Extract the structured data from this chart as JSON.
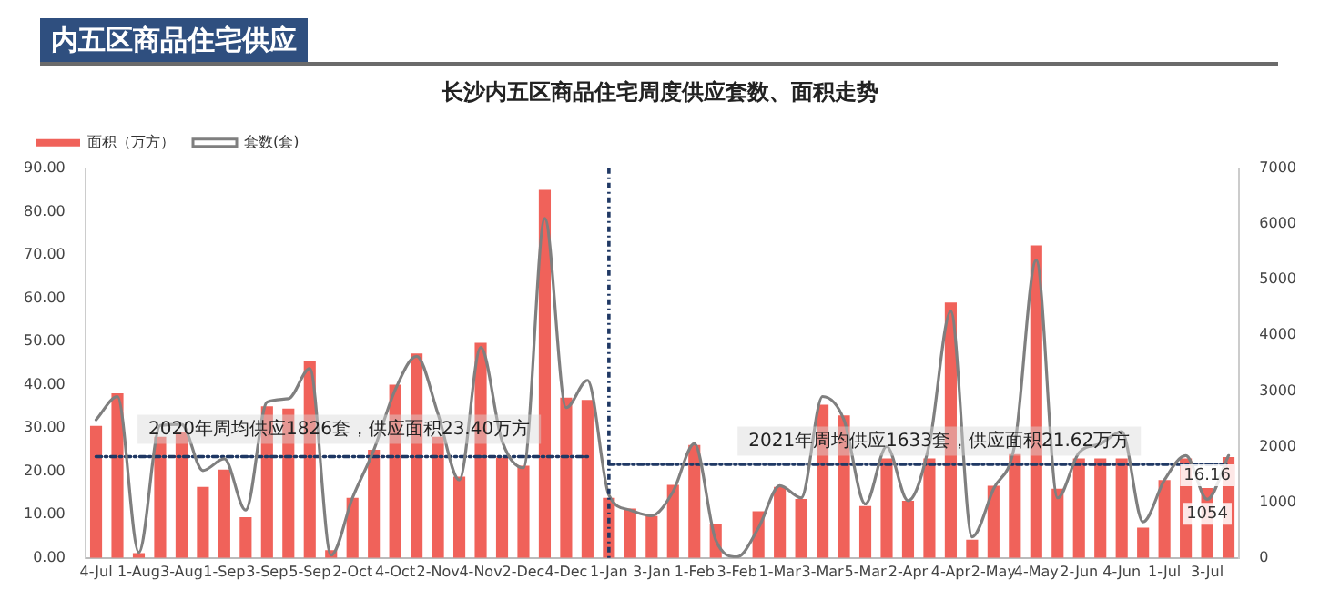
{
  "chart_data": {
    "type": "bar",
    "title": "内五区商品住宅供应",
    "subtitle": "长沙内五区商品住宅周度供应套数、面积走势",
    "categories": [
      "4-Jul",
      null,
      "1-Aug",
      null,
      "3-Aug",
      null,
      "1-Sep",
      null,
      "3-Sep",
      null,
      "5-Sep",
      null,
      "2-Oct",
      null,
      "4-Oct",
      null,
      "2-Nov",
      null,
      "4-Nov",
      null,
      "2-Dec",
      null,
      "4-Dec",
      null,
      "1-Jan",
      null,
      "3-Jan",
      null,
      "1-Feb",
      null,
      "3-Feb",
      null,
      "1-Mar",
      null,
      "3-Mar",
      null,
      "5-Mar",
      null,
      "2-Apr",
      null,
      "4-Apr",
      null,
      "2-May",
      null,
      "4-May",
      null,
      "2-Jun",
      null,
      "4-Jun",
      null,
      "1-Jul",
      null,
      "3-Jul",
      null
    ],
    "series": [
      {
        "name": "面积（万方）",
        "color": "#f0625a",
        "values": [
          30.5,
          38,
          1.1,
          28,
          29,
          16.4,
          20.4,
          9.4,
          35,
          34.5,
          45.4,
          1.8,
          13.9,
          25,
          40,
          47.2,
          28,
          18.8,
          49.7,
          23.2,
          21.3,
          85,
          37,
          36.5,
          13.9,
          11.4,
          9.7,
          16.9,
          26.1,
          7.9,
          0,
          10.8,
          16.4,
          13.6,
          35.4,
          32.9,
          12,
          23,
          13.2,
          23,
          59,
          4.2,
          16.7,
          24,
          72.2,
          16,
          23,
          23,
          23,
          7,
          18,
          23,
          16.16,
          23.3
        ],
        "value_labels": [
          null,
          null,
          null,
          null,
          null,
          null,
          null,
          null,
          null,
          null,
          null,
          null,
          null,
          null,
          null,
          null,
          null,
          null,
          null,
          null,
          null,
          null,
          null,
          null,
          null,
          null,
          null,
          null,
          null,
          null,
          null,
          null,
          null,
          null,
          null,
          null,
          null,
          null,
          null,
          null,
          null,
          null,
          null,
          null,
          null,
          null,
          null,
          null,
          null,
          null,
          null,
          null,
          "16.16",
          null
        ]
      },
      {
        "name": "套数(套)",
        "type": "line",
        "axis": "y2",
        "color": "#7f7f7f",
        "marker": "none",
        "line_style": "solid",
        "values": [
          2480,
          2900,
          100,
          2380,
          2400,
          1570,
          1780,
          860,
          2800,
          2860,
          3400,
          50,
          1080,
          1940,
          3020,
          3620,
          2590,
          1400,
          3780,
          2100,
          1620,
          6100,
          2700,
          3190,
          1130,
          860,
          760,
          1190,
          2050,
          320,
          20,
          540,
          1300,
          1080,
          2900,
          2480,
          970,
          2000,
          1030,
          2050,
          4430,
          380,
          1240,
          2050,
          5350,
          1080,
          1890,
          2050,
          2270,
          650,
          1400,
          1840,
          1054,
          1840
        ],
        "value_labels": [
          null,
          null,
          null,
          null,
          null,
          null,
          null,
          null,
          null,
          null,
          null,
          null,
          null,
          null,
          null,
          null,
          null,
          null,
          null,
          null,
          null,
          null,
          null,
          null,
          null,
          null,
          null,
          null,
          null,
          null,
          null,
          null,
          null,
          null,
          null,
          null,
          null,
          null,
          null,
          null,
          null,
          null,
          null,
          null,
          null,
          null,
          null,
          null,
          null,
          null,
          null,
          null,
          "1054",
          null
        ]
      },
      {
        "type": "line",
        "color": "#1f3864",
        "marker": "none",
        "line_style": "dashed",
        "values": [
          23.4,
          23.4,
          23.4,
          23.4,
          23.4,
          23.4,
          23.4,
          23.4,
          23.4,
          23.4,
          23.4,
          23.4,
          23.4,
          23.4,
          23.4,
          23.4,
          23.4,
          23.4,
          23.4,
          23.4,
          23.4,
          23.4,
          23.4,
          23.4,
          null,
          null,
          null,
          null,
          null,
          null,
          null,
          null,
          null,
          null,
          null,
          null,
          null,
          null,
          null,
          null,
          null,
          null,
          null,
          null,
          null,
          null,
          null,
          null,
          null,
          null,
          null,
          null,
          null,
          null
        ]
      },
      {
        "type": "line",
        "color": "#1f3864",
        "marker": "none",
        "line_style": "dashed",
        "values": [
          null,
          null,
          null,
          null,
          null,
          null,
          null,
          null,
          null,
          null,
          null,
          null,
          null,
          null,
          null,
          null,
          null,
          null,
          null,
          null,
          null,
          null,
          null,
          null,
          21.62,
          21.62,
          21.62,
          21.62,
          21.62,
          21.62,
          21.62,
          21.62,
          21.62,
          21.62,
          21.62,
          21.62,
          21.62,
          21.62,
          21.62,
          21.62,
          21.62,
          21.62,
          21.62,
          21.62,
          21.62,
          21.62,
          21.62,
          21.62,
          21.62,
          21.62,
          21.62,
          21.62,
          21.62,
          21.62
        ]
      }
    ],
    "ref_lines": [
      {
        "axis": "x",
        "value": "1-Jan",
        "color": "#1f3864",
        "line_style": "dashed"
      }
    ],
    "annotations": [
      "2020年周均供应1826套，供应面积23.40万方",
      "2021年周均供应1633套，供应面积21.62万方"
    ],
    "ylim": [
      0,
      90
    ],
    "yticks": [
      {
        "value": 0,
        "label": "0.00"
      },
      {
        "value": 10,
        "label": "10.00"
      },
      {
        "value": 20,
        "label": "20.00"
      },
      {
        "value": 30,
        "label": "30.00"
      },
      {
        "value": 40,
        "label": "40.00"
      },
      {
        "value": 50,
        "label": "50.00"
      },
      {
        "value": 60,
        "label": "60.00"
      },
      {
        "value": 70,
        "label": "70.00"
      },
      {
        "value": 80,
        "label": "80.00"
      },
      {
        "value": 90,
        "label": "90.00"
      }
    ],
    "y2lim": [
      0,
      7000
    ],
    "y2ticks": [
      0,
      1000,
      2000,
      3000,
      4000,
      5000,
      6000,
      7000
    ],
    "grid": false,
    "legend": "top left"
  }
}
